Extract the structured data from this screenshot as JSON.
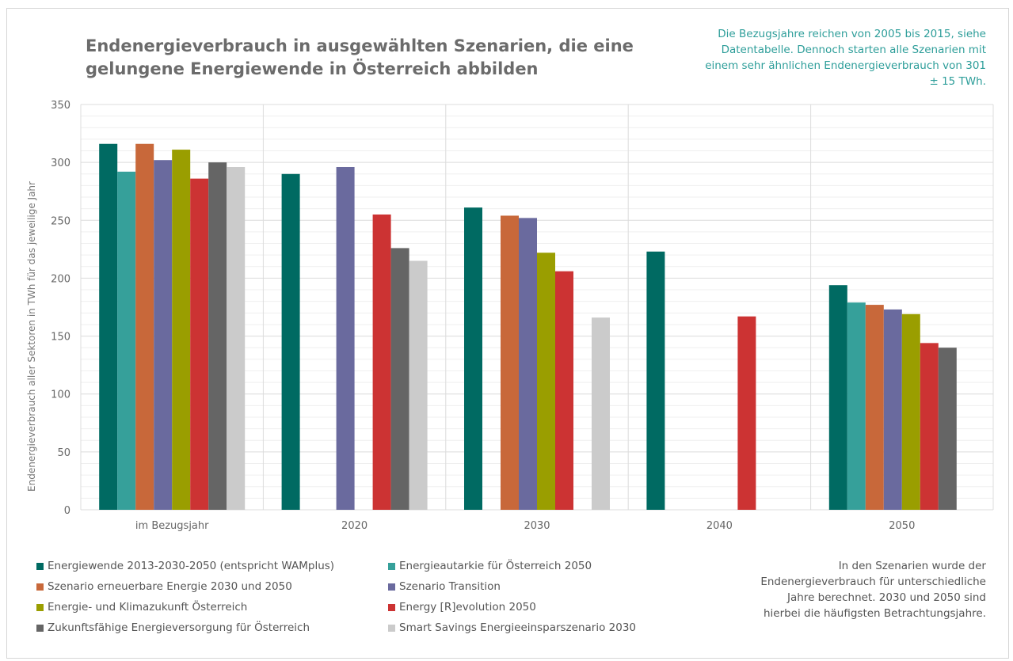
{
  "chart_data": {
    "type": "bar",
    "title": "Endenergieverbrauch in ausgewählten Szenarien, die eine gelungene Energiewende in Österreich abbilden",
    "ylabel": "Endenergieverbrauch aller Sektoren in TWh für das jeweilige Jahr",
    "xlabel": "",
    "ylim": [
      0,
      350
    ],
    "yticks": [
      0,
      50,
      100,
      150,
      200,
      250,
      300,
      350
    ],
    "grid": true,
    "legend_position": "bottom",
    "categories": [
      "im Bezugsjahr",
      "2020",
      "2030",
      "2040",
      "2050"
    ],
    "series": [
      {
        "name": "Energiewende 2013-2030-2050 (entspricht WAMplus)",
        "color": "#006a62",
        "values": [
          316,
          290,
          261,
          223,
          194
        ]
      },
      {
        "name": "Energieautarkie für Österreich 2050",
        "color": "#36a09a",
        "values": [
          292,
          null,
          null,
          null,
          179
        ]
      },
      {
        "name": "Szenario erneuerbare Energie 2030 und 2050",
        "color": "#c8683a",
        "values": [
          316,
          null,
          254,
          null,
          177
        ]
      },
      {
        "name": "Szenario Transition",
        "color": "#6a6a9e",
        "values": [
          302,
          296,
          252,
          null,
          173
        ]
      },
      {
        "name": "Energie- und Klimazukunft Österreich",
        "color": "#9a9e00",
        "values": [
          311,
          null,
          222,
          null,
          169
        ]
      },
      {
        "name": "Energy [R]evolution 2050",
        "color": "#cc3333",
        "values": [
          286,
          255,
          206,
          167,
          144
        ]
      },
      {
        "name": "Zukunftsfähige Energieversorgung für Österreich",
        "color": "#656565",
        "values": [
          300,
          226,
          null,
          null,
          140
        ]
      },
      {
        "name": "Smart Savings Energieeinsparszenario 2030",
        "color": "#cbcbcb",
        "values": [
          296,
          215,
          166,
          null,
          null
        ]
      }
    ]
  },
  "notes": {
    "top": "Die Bezugsjahre reichen von 2005 bis 2015, siehe Datentabelle. Dennoch starten alle Szenarien mit einem sehr ähnlichen Endenergieverbrauch von 301 ± 15 TWh.",
    "bottom": "In den Szenarien wurde der Endenergieverbrauch für unterschiedliche Jahre berechnet. 2030 und 2050 sind hierbei die häufigsten Betrachtungsjahre."
  }
}
